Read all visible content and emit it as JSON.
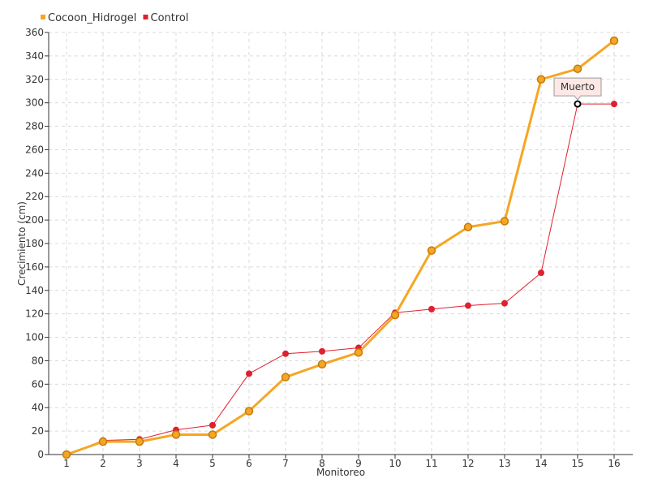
{
  "chart_data": {
    "type": "line",
    "title": "",
    "xlabel": "Monitoreo",
    "ylabel": "Crecimiento (cm)",
    "categories": [
      "1",
      "2",
      "3",
      "4",
      "5",
      "6",
      "7",
      "8",
      "9",
      "10",
      "11",
      "12",
      "13",
      "14",
      "15",
      "16"
    ],
    "ylim": [
      0,
      360
    ],
    "yticks": [
      0,
      20,
      40,
      60,
      80,
      100,
      120,
      140,
      160,
      180,
      200,
      220,
      240,
      260,
      280,
      300,
      320,
      340,
      360
    ],
    "grid": true,
    "legend_position": "top-left",
    "series": [
      {
        "name": "Cocoon_Hidrogel",
        "color": "#f5a623",
        "values": [
          0,
          11,
          11,
          17,
          17,
          37,
          66,
          77,
          87,
          119,
          174,
          194,
          199,
          320,
          329,
          353
        ]
      },
      {
        "name": "Control",
        "color": "#e0202e",
        "values": [
          0,
          12,
          13,
          21,
          25,
          69,
          86,
          88,
          91,
          121,
          124,
          127,
          129,
          155,
          299,
          299
        ]
      }
    ],
    "annotations": [
      {
        "text": "Muerto",
        "series": "Control",
        "category": "15",
        "value": 299
      }
    ]
  }
}
